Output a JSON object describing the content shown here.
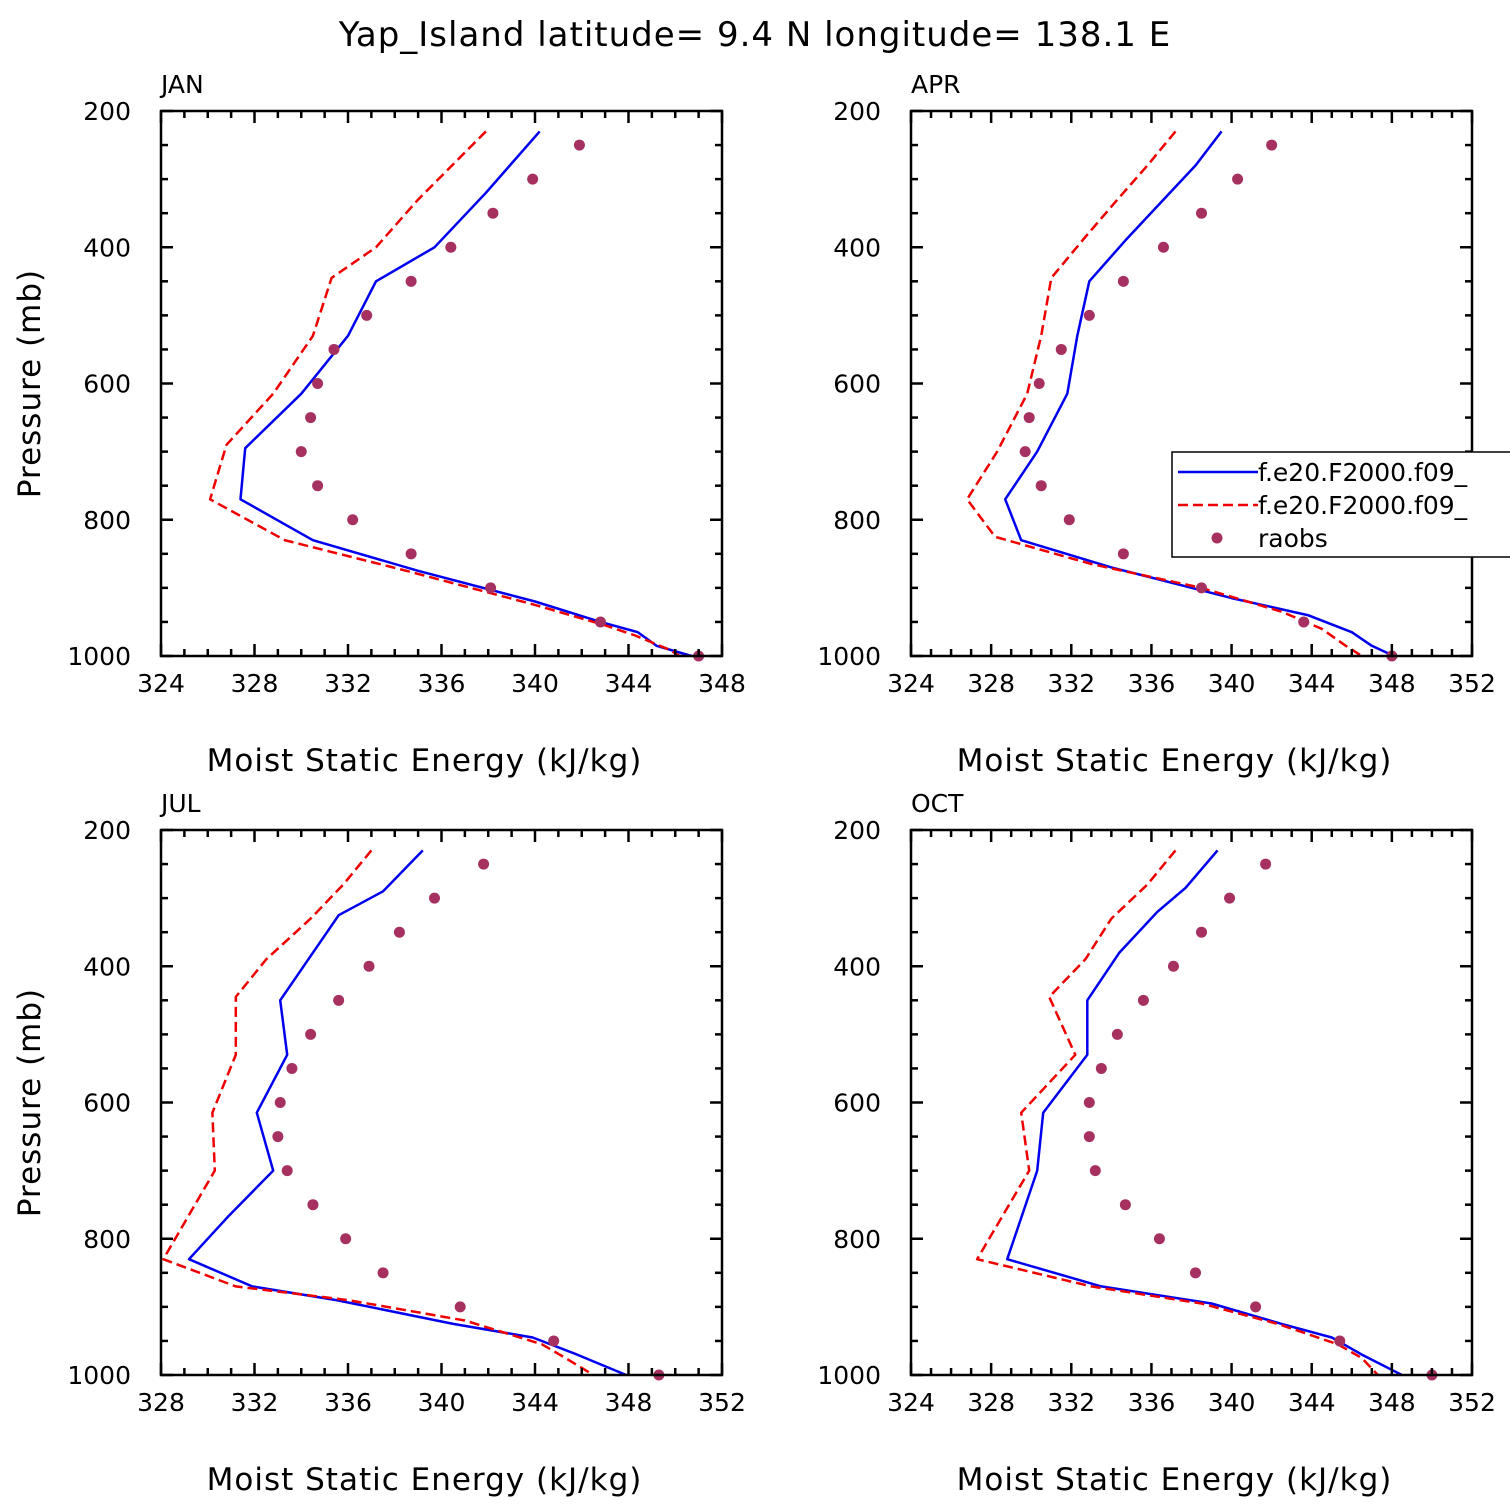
{
  "title": "Yap_Island  latitude= 9.4 N longitude= 138.1 E",
  "colors": {
    "model1": "#0000ee",
    "model2": "#ee0000",
    "obs": "#a63060"
  },
  "legend": {
    "panel": 1,
    "entries": [
      {
        "label": "f.e20.F2000.f09_",
        "style": "solid",
        "color": "#0000ee"
      },
      {
        "label": "f.e20.F2000.f09_",
        "style": "dashed",
        "color": "#ee0000"
      },
      {
        "label": "raobs",
        "style": "marker",
        "color": "#a63060"
      }
    ]
  },
  "chart_data": [
    {
      "type": "line",
      "title": "JAN",
      "xlabel": "Moist Static Energy (kJ/kg)",
      "ylabel": "Pressure (mb)",
      "xlim": [
        324,
        348
      ],
      "xticks": [
        324,
        328,
        332,
        336,
        340,
        344,
        348
      ],
      "ylim": [
        200,
        1000
      ],
      "yticks": [
        200,
        400,
        600,
        800,
        1000
      ],
      "y_inverted": true,
      "series": [
        {
          "style": "solid",
          "color": "#0000ee",
          "x": [
            340.2,
            337.9,
            335.7,
            333.2,
            332.0,
            330.0,
            327.6,
            327.4,
            330.5,
            335.0,
            340.0,
            342.8,
            344.4,
            345.2,
            346.7
          ],
          "y": [
            230,
            320,
            400,
            450,
            530,
            615,
            695,
            770,
            830,
            875,
            920,
            950,
            965,
            985,
            1000
          ]
        },
        {
          "style": "dashed",
          "color": "#ee0000",
          "x": [
            337.9,
            335.0,
            333.2,
            331.3,
            330.5,
            328.8,
            326.8,
            326.1,
            329.3,
            334.5,
            340.0,
            343.0,
            344.3,
            345.7,
            346.2
          ],
          "y": [
            230,
            330,
            400,
            445,
            530,
            615,
            690,
            770,
            830,
            875,
            925,
            955,
            970,
            990,
            1000
          ]
        },
        {
          "style": "marker",
          "color": "#a63060",
          "x": [
            341.9,
            339.9,
            338.2,
            336.4,
            334.7,
            332.8,
            331.4,
            330.7,
            330.4,
            330.0,
            330.7,
            332.2,
            334.7,
            338.1,
            342.8,
            347.0
          ],
          "y": [
            250,
            300,
            350,
            400,
            450,
            500,
            550,
            600,
            650,
            700,
            750,
            800,
            850,
            900,
            950,
            1000
          ]
        }
      ]
    },
    {
      "type": "line",
      "title": "APR",
      "xlabel": "Moist Static Energy (kJ/kg)",
      "ylabel": "",
      "xlim": [
        324,
        352
      ],
      "xticks": [
        324,
        328,
        332,
        336,
        340,
        344,
        348,
        352
      ],
      "ylim": [
        200,
        1000
      ],
      "yticks": [
        200,
        400,
        600,
        800,
        1000
      ],
      "y_inverted": true,
      "series": [
        {
          "style": "solid",
          "color": "#0000ee",
          "x": [
            339.5,
            338.2,
            336.6,
            334.7,
            332.9,
            332.3,
            331.8,
            330.3,
            328.7,
            329.5,
            334.0,
            340.0,
            343.8,
            346.0,
            347.0,
            348.1
          ],
          "y": [
            230,
            280,
            330,
            390,
            450,
            530,
            615,
            700,
            770,
            830,
            870,
            915,
            940,
            965,
            985,
            1000
          ]
        },
        {
          "style": "dashed",
          "color": "#ee0000",
          "x": [
            337.2,
            335.8,
            334.3,
            332.7,
            331.0,
            330.5,
            329.8,
            328.3,
            326.8,
            328.2,
            333.0,
            338.5,
            342.5,
            344.5,
            345.7,
            346.5
          ],
          "y": [
            230,
            280,
            330,
            385,
            445,
            530,
            615,
            700,
            770,
            825,
            865,
            900,
            935,
            960,
            985,
            1000
          ]
        },
        {
          "style": "marker",
          "color": "#a63060",
          "x": [
            342.0,
            340.3,
            338.5,
            336.6,
            334.6,
            332.9,
            331.5,
            330.4,
            329.9,
            329.7,
            330.5,
            331.9,
            334.6,
            338.5,
            343.6,
            348.0
          ],
          "y": [
            250,
            300,
            350,
            400,
            450,
            500,
            550,
            600,
            650,
            700,
            750,
            800,
            850,
            900,
            950,
            1000
          ]
        }
      ]
    },
    {
      "type": "line",
      "title": "JUL",
      "xlabel": "Moist Static Energy (kJ/kg)",
      "ylabel": "Pressure (mb)",
      "xlim": [
        328,
        352
      ],
      "xticks": [
        328,
        332,
        336,
        340,
        344,
        348,
        352
      ],
      "ylim": [
        200,
        1000
      ],
      "yticks": [
        200,
        400,
        600,
        800,
        1000
      ],
      "y_inverted": true,
      "series": [
        {
          "style": "solid",
          "color": "#0000ee",
          "x": [
            339.2,
            337.5,
            335.6,
            333.1,
            333.4,
            332.1,
            332.8,
            330.8,
            329.2,
            331.9,
            335.5,
            340.5,
            343.9,
            345.8,
            347.9
          ],
          "y": [
            230,
            290,
            325,
            450,
            530,
            615,
            700,
            770,
            830,
            870,
            890,
            925,
            945,
            970,
            1000
          ]
        },
        {
          "style": "dashed",
          "color": "#ee0000",
          "x": [
            337.0,
            335.8,
            334.4,
            332.5,
            331.2,
            331.2,
            330.2,
            330.3,
            328.1,
            331.2,
            336.0,
            341.0,
            344.3,
            345.3,
            346.5
          ],
          "y": [
            230,
            280,
            330,
            390,
            445,
            530,
            615,
            700,
            830,
            870,
            890,
            920,
            955,
            975,
            1000
          ]
        },
        {
          "style": "marker",
          "color": "#a63060",
          "x": [
            341.8,
            339.7,
            338.2,
            336.9,
            335.6,
            334.4,
            333.6,
            333.1,
            333.0,
            333.4,
            334.5,
            335.9,
            337.5,
            340.8,
            344.8,
            349.3
          ],
          "y": [
            250,
            300,
            350,
            400,
            450,
            500,
            550,
            600,
            650,
            700,
            750,
            800,
            850,
            900,
            950,
            1000
          ]
        }
      ]
    },
    {
      "type": "line",
      "title": "OCT",
      "xlabel": "Moist Static Energy (kJ/kg)",
      "ylabel": "",
      "xlim": [
        324,
        352
      ],
      "xticks": [
        324,
        328,
        332,
        336,
        340,
        344,
        348,
        352
      ],
      "ylim": [
        200,
        1000
      ],
      "yticks": [
        200,
        400,
        600,
        800,
        1000
      ],
      "y_inverted": true,
      "series": [
        {
          "style": "solid",
          "color": "#0000ee",
          "x": [
            339.3,
            337.7,
            336.3,
            334.4,
            332.8,
            332.8,
            330.6,
            330.3,
            328.8,
            333.5,
            339.0,
            342.5,
            345.0,
            346.5,
            348.5
          ],
          "y": [
            230,
            285,
            320,
            380,
            450,
            530,
            615,
            700,
            830,
            870,
            895,
            925,
            945,
            970,
            1000
          ]
        },
        {
          "style": "dashed",
          "color": "#ee0000",
          "x": [
            337.2,
            335.8,
            334.0,
            332.7,
            330.9,
            332.2,
            329.5,
            329.9,
            327.3,
            333.0,
            338.5,
            342.3,
            345.3,
            346.5,
            347.3
          ],
          "y": [
            230,
            280,
            330,
            390,
            445,
            530,
            615,
            700,
            830,
            870,
            895,
            925,
            955,
            975,
            1000
          ]
        },
        {
          "style": "marker",
          "color": "#a63060",
          "x": [
            341.7,
            339.9,
            338.5,
            337.1,
            335.6,
            334.3,
            333.5,
            332.9,
            332.9,
            333.2,
            334.7,
            336.4,
            338.2,
            341.2,
            345.4,
            350.0
          ],
          "y": [
            250,
            300,
            350,
            400,
            450,
            500,
            550,
            600,
            650,
            700,
            750,
            800,
            850,
            900,
            950,
            1000
          ]
        }
      ]
    }
  ]
}
